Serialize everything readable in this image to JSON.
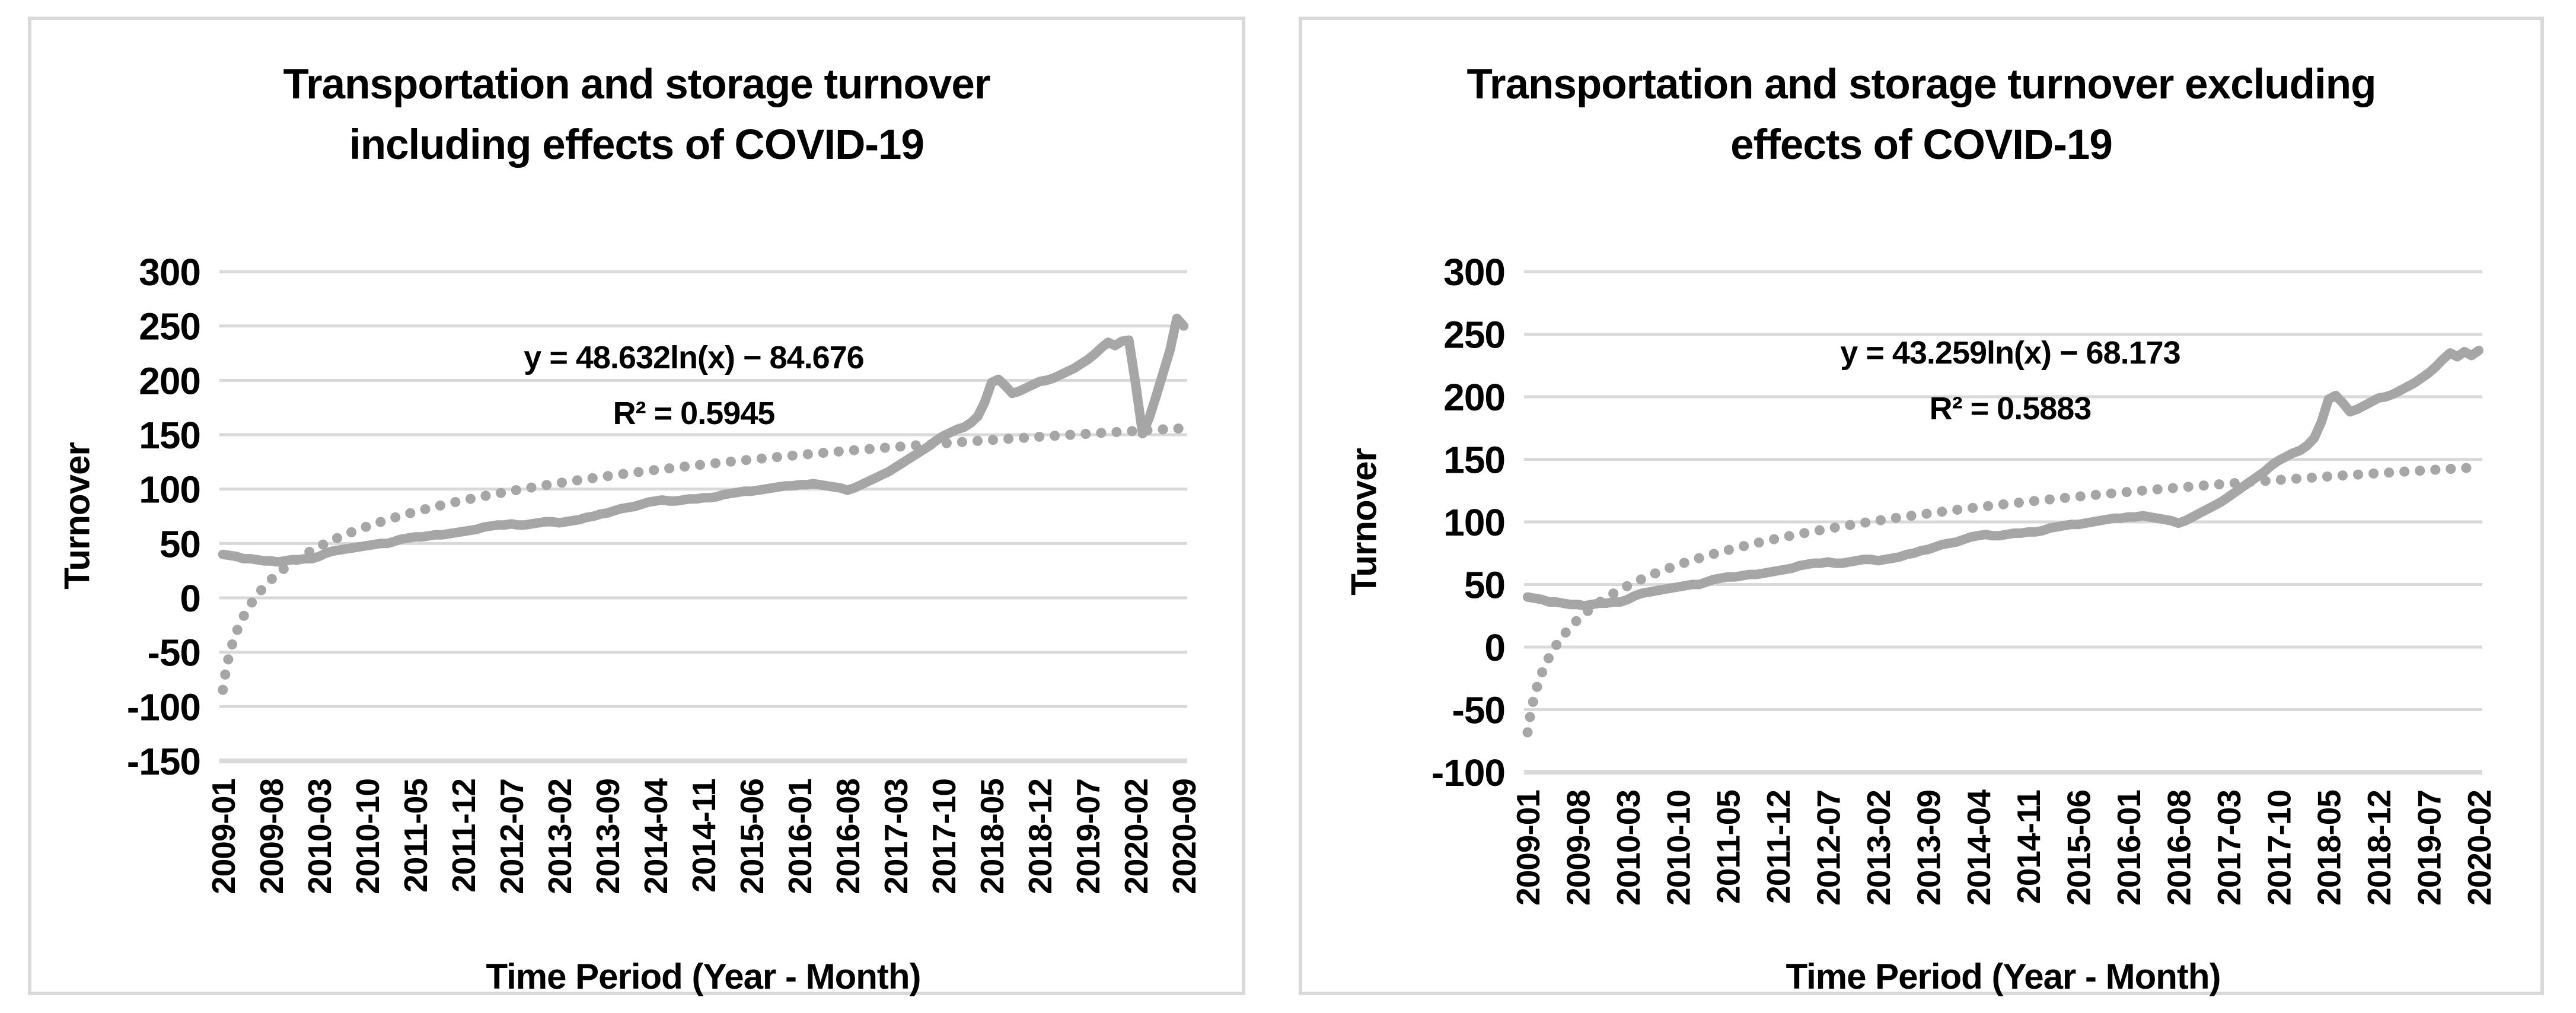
{
  "page_background": "#ffffff",
  "chart_data": [
    {
      "type": "line",
      "title": "Transportation and storage turnover including effects of COVID-19",
      "title_lines": [
        "Transportation and storage turnover",
        "including effects of COVID-19"
      ],
      "xlabel": "Time Period (Year - Month)",
      "ylabel": "Turnover",
      "ylim": [
        -150,
        300
      ],
      "yticks": [
        300,
        250,
        200,
        150,
        100,
        50,
        0,
        -50,
        -100,
        -150
      ],
      "x_start": "2009-01",
      "x_end": "2020-09",
      "x_frequency": "monthly",
      "xtick_every": 7,
      "xtick_labels": [
        "2009-01",
        "2009-08",
        "2010-03",
        "2010-10",
        "2011-05",
        "2011-12",
        "2012-07",
        "2013-02",
        "2013-09",
        "2014-04",
        "2014-11",
        "2015-06",
        "2016-01",
        "2016-08",
        "2017-03",
        "2017-10",
        "2018-05",
        "2018-12",
        "2019-07",
        "2020-02",
        "2020-09"
      ],
      "grid": "horizontal",
      "legend": "none",
      "annotations": {
        "equation": "y = 48.632ln(x) − 84.676",
        "r_squared": "R² = 0.5945"
      },
      "series": [
        {
          "name": "Turnover",
          "style": "solid",
          "values": [
            40,
            39,
            38,
            36,
            36,
            35,
            34,
            34,
            33,
            34,
            35,
            35,
            36,
            36,
            38,
            41,
            43,
            44,
            45,
            46,
            47,
            48,
            49,
            50,
            50,
            52,
            54,
            55,
            56,
            56,
            57,
            58,
            58,
            59,
            60,
            61,
            62,
            63,
            65,
            66,
            67,
            67,
            68,
            67,
            67,
            68,
            69,
            70,
            70,
            69,
            70,
            71,
            72,
            74,
            75,
            77,
            78,
            80,
            82,
            83,
            84,
            86,
            88,
            89,
            90,
            89,
            89,
            90,
            91,
            91,
            92,
            92,
            93,
            95,
            96,
            97,
            98,
            98,
            99,
            100,
            101,
            102,
            103,
            103,
            104,
            104,
            105,
            104,
            103,
            102,
            101,
            99,
            101,
            104,
            107,
            110,
            113,
            116,
            120,
            124,
            128,
            132,
            136,
            140,
            145,
            149,
            152,
            155,
            157,
            161,
            167,
            180,
            198,
            201,
            195,
            188,
            190,
            193,
            196,
            199,
            200,
            202,
            205,
            208,
            211,
            215,
            219,
            224,
            230,
            235,
            232,
            236,
            237,
            196,
            151,
            166,
            186,
            207,
            228,
            257,
            250
          ]
        },
        {
          "name": "Log. trendline",
          "style": "dotted",
          "equation": "y = 48.632ln(x) − 84.676",
          "a": 48.632,
          "b": -84.676
        }
      ],
      "colors": {
        "line": "#a6a6a6",
        "trend": "#a6a6a6",
        "grid": "#d9d9d9",
        "axis": "#d9d9d9",
        "text": "#000000",
        "border": "#d9d9d9"
      }
    },
    {
      "type": "line",
      "title": "Transportation and storage turnover excluding effects of COVID-19",
      "title_lines": [
        "Transportation and storage turnover excluding",
        "effects of COVID-19"
      ],
      "xlabel": "Time Period (Year - Month)",
      "ylabel": "Turnover",
      "ylim": [
        -100,
        300
      ],
      "yticks": [
        300,
        250,
        200,
        150,
        100,
        50,
        0,
        -50,
        -100
      ],
      "x_start": "2009-01",
      "x_end": "2020-02",
      "x_frequency": "monthly",
      "xtick_every": 7,
      "xtick_labels": [
        "2009-01",
        "2009-08",
        "2010-03",
        "2010-10",
        "2011-05",
        "2011-12",
        "2012-07",
        "2013-02",
        "2013-09",
        "2014-04",
        "2014-11",
        "2015-06",
        "2016-01",
        "2016-08",
        "2017-03",
        "2017-10",
        "2018-05",
        "2018-12",
        "2019-07",
        "2020-02"
      ],
      "grid": "horizontal",
      "legend": "none",
      "annotations": {
        "equation": "y = 43.259ln(x) − 68.173",
        "r_squared": "R² = 0.5883"
      },
      "series": [
        {
          "name": "Turnover",
          "style": "solid",
          "values": [
            40,
            39,
            38,
            36,
            36,
            35,
            34,
            34,
            33,
            34,
            35,
            35,
            36,
            36,
            38,
            41,
            43,
            44,
            45,
            46,
            47,
            48,
            49,
            50,
            50,
            52,
            54,
            55,
            56,
            56,
            57,
            58,
            58,
            59,
            60,
            61,
            62,
            63,
            65,
            66,
            67,
            67,
            68,
            67,
            67,
            68,
            69,
            70,
            70,
            69,
            70,
            71,
            72,
            74,
            75,
            77,
            78,
            80,
            82,
            83,
            84,
            86,
            88,
            89,
            90,
            89,
            89,
            90,
            91,
            91,
            92,
            92,
            93,
            95,
            96,
            97,
            98,
            98,
            99,
            100,
            101,
            102,
            103,
            103,
            104,
            104,
            105,
            104,
            103,
            102,
            101,
            99,
            101,
            104,
            107,
            110,
            113,
            116,
            120,
            124,
            128,
            132,
            136,
            140,
            145,
            149,
            152,
            155,
            157,
            161,
            167,
            180,
            198,
            201,
            195,
            188,
            190,
            193,
            196,
            199,
            200,
            202,
            205,
            208,
            211,
            215,
            219,
            224,
            230,
            235,
            232,
            236,
            233,
            237
          ]
        },
        {
          "name": "Log. trendline",
          "style": "dotted",
          "equation": "y = 43.259ln(x) − 68.173",
          "a": 43.259,
          "b": -68.173
        }
      ],
      "colors": {
        "line": "#a6a6a6",
        "trend": "#a6a6a6",
        "grid": "#d9d9d9",
        "axis": "#d9d9d9",
        "text": "#000000",
        "border": "#d9d9d9"
      }
    }
  ]
}
